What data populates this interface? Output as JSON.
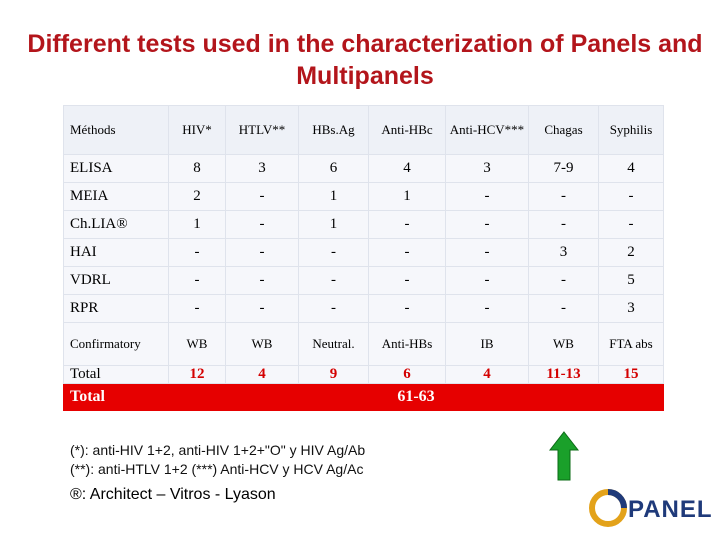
{
  "title": "Different tests used in the characterization of Panels and Multipanels",
  "table": {
    "headers": [
      "Méthods",
      "HIV*",
      "HTLV**",
      "HBs.Ag",
      "Anti-HBc",
      "Anti-HCV***",
      "Chagas",
      "Syphilis"
    ],
    "rows": [
      [
        "ELISA",
        "8",
        "3",
        "6",
        "4",
        "3",
        "7-9",
        "4"
      ],
      [
        "MEIA",
        "2",
        "-",
        "1",
        "1",
        "-",
        "-",
        "-"
      ],
      [
        "Ch.LIA®",
        "1",
        "-",
        "1",
        "-",
        "-",
        "-",
        "-"
      ],
      [
        "HAI",
        "-",
        "-",
        "-",
        "-",
        "-",
        "3",
        "2"
      ],
      [
        "VDRL",
        "-",
        "-",
        "-",
        "-",
        "-",
        "-",
        "5"
      ],
      [
        "RPR",
        "-",
        "-",
        "-",
        "-",
        "-",
        "-",
        "3"
      ],
      [
        "Confirmatory",
        "WB",
        "WB",
        "Neutral.",
        "Anti-HBs",
        "IB",
        "WB",
        "FTA abs"
      ],
      [
        "Total",
        "12",
        "4",
        "9",
        "6",
        "4",
        "11-13",
        "15"
      ]
    ],
    "grand_total": {
      "label": "Total",
      "value": "61-63"
    }
  },
  "notes": [
    "(*): anti-HIV 1+2, anti-HIV 1+2+\"O\" y HIV Ag/Ab",
    "(**): anti-HTLV 1+2  (***) Anti-HCV y HCV Ag/Ac"
  ],
  "footer": "®: Architect – Vitros - Lyason",
  "logo": "PANEL"
}
